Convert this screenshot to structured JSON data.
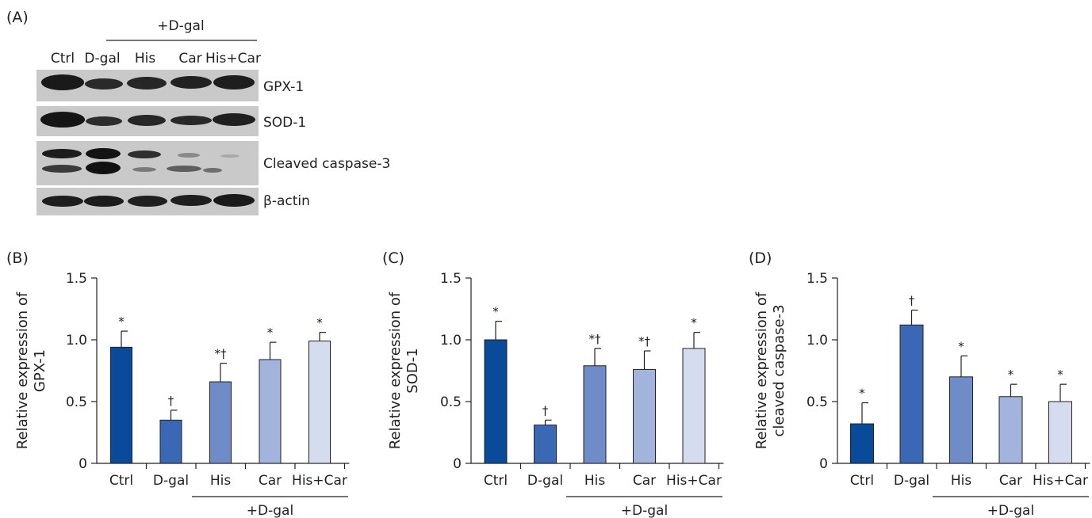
{
  "panel_a": {
    "label": "(A)",
    "group_label": "+D-gal",
    "lanes": [
      "Ctrl",
      "D-gal",
      "His",
      "Car",
      "His+Car"
    ],
    "proteins": [
      "GPX-1",
      "SOD-1",
      "Cleaved caspase-3",
      "β-actin"
    ]
  },
  "chart_data": [
    {
      "type": "bar",
      "panel": "(B)",
      "categories": [
        "Ctrl",
        "D-gal",
        "His",
        "Car",
        "His+Car"
      ],
      "values": [
        0.94,
        0.35,
        0.66,
        0.84,
        0.99
      ],
      "errors": [
        0.13,
        0.08,
        0.15,
        0.14,
        0.07
      ],
      "annotations": [
        "*",
        "†",
        "*†",
        "*",
        "*"
      ],
      "ylabel": "Relative expression of GPX-1",
      "ylabel_lines": [
        "Relative expression of",
        "GPX-1"
      ],
      "ylim": [
        0,
        1.5
      ],
      "yticks": [
        "0",
        "0.5",
        "1.0",
        "1.5"
      ],
      "group_label": "+D-gal",
      "colors": [
        "#0a4a9a",
        "#3a68b4",
        "#6f8cc8",
        "#a2b3dc",
        "#d5dcef"
      ]
    },
    {
      "type": "bar",
      "panel": "(C)",
      "categories": [
        "Ctrl",
        "D-gal",
        "His",
        "Car",
        "His+Car"
      ],
      "values": [
        1.0,
        0.31,
        0.79,
        0.76,
        0.93
      ],
      "errors": [
        0.15,
        0.04,
        0.14,
        0.15,
        0.13
      ],
      "annotations": [
        "*",
        "†",
        "*†",
        "*†",
        "*"
      ],
      "ylabel": "Relative expression of SOD-1",
      "ylabel_lines": [
        "Relative expression of",
        "SOD-1"
      ],
      "ylim": [
        0,
        1.5
      ],
      "yticks": [
        "0",
        "0.5",
        "1.0",
        "1.5"
      ],
      "group_label": "+D-gal",
      "colors": [
        "#0a4a9a",
        "#3a68b4",
        "#6f8cc8",
        "#a2b3dc",
        "#d5dcef"
      ]
    },
    {
      "type": "bar",
      "panel": "(D)",
      "categories": [
        "Ctrl",
        "D-gal",
        "His",
        "Car",
        "His+Car"
      ],
      "values": [
        0.32,
        1.12,
        0.7,
        0.54,
        0.5
      ],
      "errors": [
        0.17,
        0.12,
        0.17,
        0.1,
        0.14
      ],
      "annotations": [
        "*",
        "†",
        "*",
        "*",
        "*"
      ],
      "ylabel": "Relative expression of cleaved caspase-3",
      "ylabel_lines": [
        "Relative expression of",
        "cleaved caspase-3"
      ],
      "ylim": [
        0,
        1.5
      ],
      "yticks": [
        "0",
        "0.5",
        "1.0",
        "1.5"
      ],
      "group_label": "+D-gal",
      "colors": [
        "#0a4a9a",
        "#3a68b4",
        "#6f8cc8",
        "#a2b3dc",
        "#d5dcef"
      ]
    }
  ]
}
